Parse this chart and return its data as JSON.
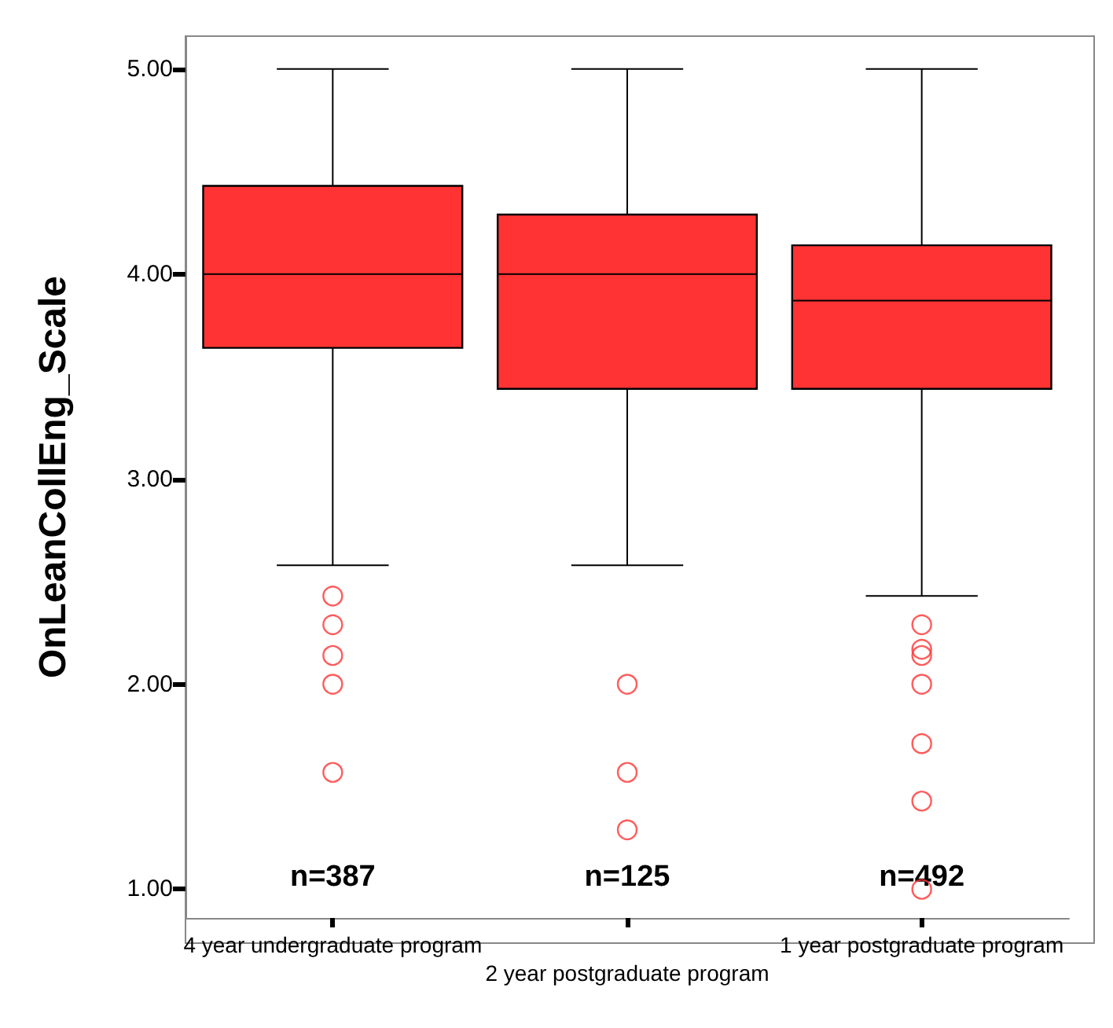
{
  "chart_data": {
    "type": "box",
    "ylabel": "OnLeanCollEng_Scale",
    "categories": [
      "4 year undergraduate program",
      "2 year postgraduate program",
      "1 year postgraduate program"
    ],
    "color": "#ff3333",
    "ylim": [
      0.86,
      5.16
    ],
    "yticks": [
      {
        "value": 1,
        "label": "1.00"
      },
      {
        "value": 2,
        "label": "2.00"
      },
      {
        "value": 3,
        "label": "3.00"
      },
      {
        "value": 4,
        "label": "4.00"
      },
      {
        "value": 5,
        "label": "5.00"
      }
    ],
    "grid": false,
    "boxes": [
      {
        "low": 2.58,
        "q1": 3.64,
        "median": 4.0,
        "q3": 4.43,
        "high": 5.0,
        "outliers": [
          2.43,
          2.29,
          2.14,
          2.0,
          1.57
        ]
      },
      {
        "low": 2.58,
        "q1": 3.44,
        "median": 4.0,
        "q3": 4.29,
        "high": 5.0,
        "outliers": [
          2.0,
          1.57,
          1.29
        ]
      },
      {
        "low": 2.43,
        "q1": 3.44,
        "median": 3.87,
        "q3": 4.14,
        "high": 5.0,
        "outliers": [
          2.29,
          2.17,
          2.14,
          2.0,
          1.71,
          1.43,
          1.0
        ]
      }
    ],
    "annotations": [
      "n=387",
      "n=125",
      "n=492"
    ]
  }
}
